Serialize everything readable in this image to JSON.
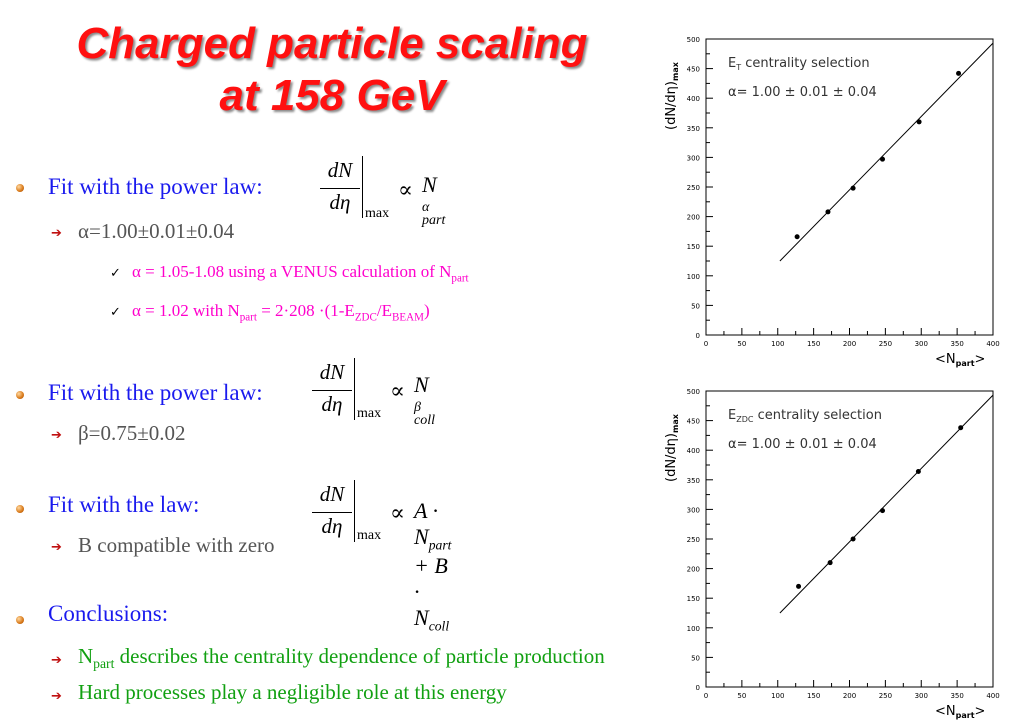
{
  "slide": {
    "title_line1": "Charged particle scaling",
    "title_line2": "at 158 GeV",
    "sections": [
      {
        "heading": "Fit with the power law:",
        "sub": "α=1.00±0.01±0.04",
        "checks": [
          {
            "text": "α = 1.05-1.08 using a VENUS calculation of N",
            "sub": "part",
            "tail": ""
          },
          {
            "text": "α = 1.02 with N",
            "sub": "part",
            "tail": " = 2·208 ·(1-E",
            "sub2": "ZDC",
            "tail2": "/E",
            "sub3": "BEAM",
            "tail3": ")"
          }
        ]
      },
      {
        "heading": "Fit with the power law:",
        "sub": "β=0.75±0.02"
      },
      {
        "heading": "Fit with the law:",
        "sub": "B compatible with zero"
      },
      {
        "heading": "Conclusions:",
        "items": [
          {
            "pre": "N",
            "sub": "part",
            "text": " describes the centrality dependence of particle production"
          },
          {
            "text": "Hard processes play a negligible role at this energy"
          }
        ]
      }
    ],
    "formulas": {
      "num": "dN",
      "den": "dη",
      "max": "max",
      "f1_var": "N",
      "f1_sup": "α",
      "f1_sub": "part",
      "f2_var": "N",
      "f2_sup": "β",
      "f2_sub": "coll",
      "f3_a": "A · N",
      "f3_asub": "part",
      "f3_b": " + B · N",
      "f3_bsub": "coll",
      "propto": "∝"
    }
  },
  "chart_data": [
    {
      "type": "scatter",
      "title": "E_T centrality selection",
      "legend_label": "E",
      "legend_sub": "T",
      "legend_tail": " centrality selection",
      "fit_text": "α= 1.00 ± 0.01 ± 0.04",
      "ylabel": "(dN/dη)",
      "ylabel_sub": "max",
      "xlabel": "<N",
      "xlabel_sub": "part",
      "xlabel_tail": ">",
      "xlim": [
        0,
        400
      ],
      "ylim": [
        0,
        500
      ],
      "xticks": [
        0,
        50,
        100,
        150,
        200,
        250,
        300,
        350,
        400
      ],
      "yticks": [
        0,
        50,
        100,
        150,
        200,
        250,
        300,
        350,
        400,
        450,
        500
      ],
      "points": [
        [
          127,
          166
        ],
        [
          170,
          208
        ],
        [
          205,
          248
        ],
        [
          246,
          297
        ],
        [
          297,
          360
        ],
        [
          352,
          442
        ]
      ],
      "fit_line": [
        [
          103,
          125
        ],
        [
          400,
          493
        ]
      ]
    },
    {
      "type": "scatter",
      "title": "E_ZDC centrality selection",
      "legend_label": "E",
      "legend_sub": "ZDC",
      "legend_tail": " centrality selection",
      "fit_text": "α= 1.00 ± 0.01 ± 0.04",
      "ylabel": "(dN/dη)",
      "ylabel_sub": "max",
      "xlabel": "<N",
      "xlabel_sub": "part",
      "xlabel_tail": ">",
      "xlim": [
        0,
        400
      ],
      "ylim": [
        0,
        500
      ],
      "xticks": [
        0,
        50,
        100,
        150,
        200,
        250,
        300,
        350,
        400
      ],
      "yticks": [
        0,
        50,
        100,
        150,
        200,
        250,
        300,
        350,
        400,
        450,
        500
      ],
      "points": [
        [
          129,
          170
        ],
        [
          173,
          210
        ],
        [
          205,
          250
        ],
        [
          246,
          298
        ],
        [
          296,
          364
        ],
        [
          355,
          438
        ]
      ],
      "fit_line": [
        [
          103,
          125
        ],
        [
          400,
          493
        ]
      ]
    }
  ]
}
